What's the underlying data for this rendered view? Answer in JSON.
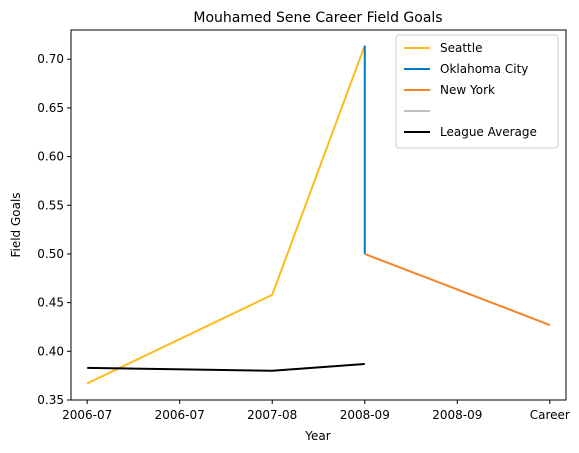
{
  "chart_data": {
    "type": "line",
    "title": "Mouhamed Sene Career Field Goals",
    "xlabel": "Year",
    "ylabel": "Field Goals",
    "x_tick_labels": [
      "2006-07",
      "2006-07",
      "2007-08",
      "2008-09",
      "2008-09",
      "Career"
    ],
    "x_tick_positions": [
      0,
      0.5,
      1,
      1.5,
      2,
      2.5
    ],
    "xlim": [
      -0.0875,
      2.5875
    ],
    "ylim": [
      0.35,
      0.73
    ],
    "y_ticks": [
      0.35,
      0.4,
      0.45,
      0.5,
      0.55,
      0.6,
      0.65,
      0.7
    ],
    "y_tick_labels": [
      "0.35",
      "0.40",
      "0.45",
      "0.50",
      "0.55",
      "0.60",
      "0.65",
      "0.70"
    ],
    "grid": false,
    "legend_position": "top-right",
    "series": [
      {
        "name": "Seattle",
        "color": "#FDBB1D",
        "x": [
          0,
          1,
          1.5
        ],
        "y": [
          0.367,
          0.458,
          0.714
        ]
      },
      {
        "name": "Oklahoma City",
        "color": "#007AC1",
        "x": [
          1.5,
          1.5
        ],
        "y": [
          0.714,
          0.5
        ]
      },
      {
        "name": "New York",
        "color": "#F58426",
        "x": [
          1.5,
          2.5
        ],
        "y": [
          0.5,
          0.427
        ]
      },
      {
        "name": "",
        "color": "#BEC0C2",
        "x": [],
        "y": []
      },
      {
        "name": "League Average",
        "color": "#000000",
        "x": [
          0,
          1,
          1.5
        ],
        "y": [
          0.383,
          0.38,
          0.387
        ]
      }
    ]
  }
}
